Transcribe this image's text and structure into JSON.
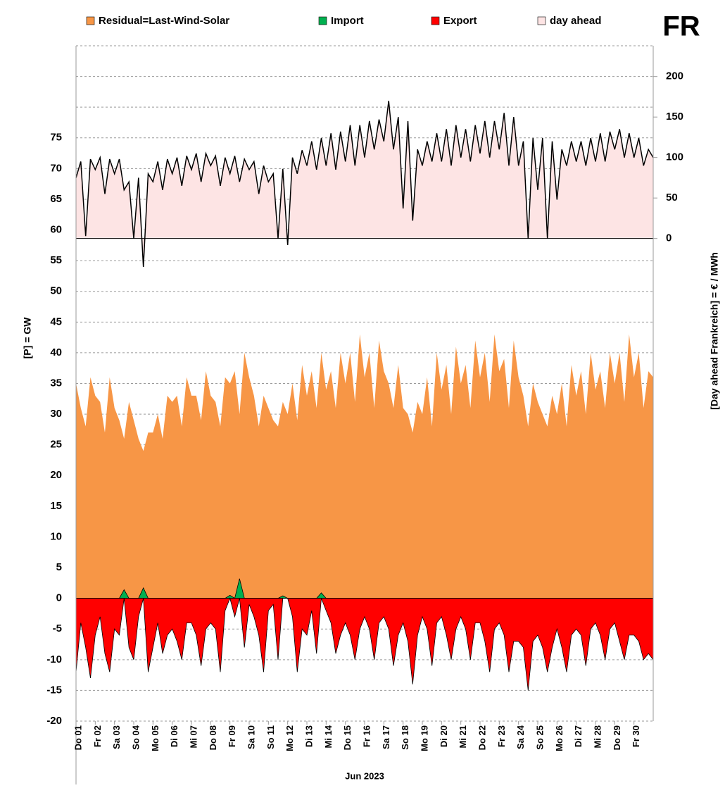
{
  "chart_data": {
    "type": "area",
    "label": "FR",
    "xlabel": "Jun 2023",
    "ylabel": "[P] = GW",
    "y2label": "[Day ahead Frankreich] = € / MWh",
    "xlim": [
      1,
      31
    ],
    "xticks": [
      {
        "value": 1,
        "label": "Do 01"
      },
      {
        "value": 2,
        "label": "Fr 02"
      },
      {
        "value": 3,
        "label": "Sa 03"
      },
      {
        "value": 4,
        "label": "So 04"
      },
      {
        "value": 5,
        "label": "Mo 05"
      },
      {
        "value": 6,
        "label": "Di 06"
      },
      {
        "value": 7,
        "label": "Mi 07"
      },
      {
        "value": 8,
        "label": "Do 08"
      },
      {
        "value": 9,
        "label": "Fr 09"
      },
      {
        "value": 10,
        "label": "Sa 10"
      },
      {
        "value": 11,
        "label": "So 11"
      },
      {
        "value": 12,
        "label": "Mo 12"
      },
      {
        "value": 13,
        "label": "Di 13"
      },
      {
        "value": 14,
        "label": "Mi 14"
      },
      {
        "value": 15,
        "label": "Do 15"
      },
      {
        "value": 16,
        "label": "Fr 16"
      },
      {
        "value": 17,
        "label": "Sa 17"
      },
      {
        "value": 18,
        "label": "So 18"
      },
      {
        "value": 19,
        "label": "Mo 19"
      },
      {
        "value": 20,
        "label": "Di 20"
      },
      {
        "value": 21,
        "label": "Mi 21"
      },
      {
        "value": 22,
        "label": "Do 22"
      },
      {
        "value": 23,
        "label": "Fr 23"
      },
      {
        "value": 24,
        "label": "Sa 24"
      },
      {
        "value": 25,
        "label": "So 25"
      },
      {
        "value": 26,
        "label": "Mo 26"
      },
      {
        "value": 27,
        "label": "Di 27"
      },
      {
        "value": 28,
        "label": "Mi 28"
      },
      {
        "value": 29,
        "label": "Do 29"
      },
      {
        "value": 30,
        "label": "Fr 30"
      }
    ],
    "ylim": [
      -20,
      90
    ],
    "yticks": [
      -20,
      -15,
      -10,
      -5,
      0,
      5,
      10,
      15,
      20,
      25,
      30,
      35,
      40,
      45,
      50,
      55,
      60,
      65,
      70,
      75
    ],
    "y2lim": [
      -596,
      238
    ],
    "y2ticks": [
      0,
      50,
      100,
      150,
      200
    ],
    "grid": true,
    "x": [
      1,
      1.25,
      1.5,
      1.75,
      2,
      2.25,
      2.5,
      2.75,
      3,
      3.25,
      3.5,
      3.75,
      4,
      4.25,
      4.5,
      4.75,
      5,
      5.25,
      5.5,
      5.75,
      6,
      6.25,
      6.5,
      6.75,
      7,
      7.25,
      7.5,
      7.75,
      8,
      8.25,
      8.5,
      8.75,
      9,
      9.25,
      9.5,
      9.75,
      10,
      10.25,
      10.5,
      10.75,
      11,
      11.25,
      11.5,
      11.75,
      12,
      12.25,
      12.5,
      12.75,
      13,
      13.25,
      13.5,
      13.75,
      14,
      14.25,
      14.5,
      14.75,
      15,
      15.25,
      15.5,
      15.75,
      16,
      16.25,
      16.5,
      16.75,
      17,
      17.25,
      17.5,
      17.75,
      18,
      18.25,
      18.5,
      18.75,
      19,
      19.25,
      19.5,
      19.75,
      20,
      20.25,
      20.5,
      20.75,
      21,
      21.25,
      21.5,
      21.75,
      22,
      22.25,
      22.5,
      22.75,
      23,
      23.25,
      23.5,
      23.75,
      24,
      24.25,
      24.5,
      24.75,
      25,
      25.25,
      25.5,
      25.75,
      26,
      26.25,
      26.5,
      26.75,
      27,
      27.25,
      27.5,
      27.75,
      28,
      28.25,
      28.5,
      28.75,
      29,
      29.25,
      29.5,
      29.75,
      30,
      30.25,
      30.5,
      30.75,
      31
    ],
    "series": [
      {
        "name": "Residual=Last-Wind-Solar",
        "color": "#f79646",
        "values": [
          35,
          31,
          28,
          36,
          33,
          32,
          27,
          36,
          31,
          29,
          26,
          32,
          29,
          26,
          24,
          27,
          27,
          30,
          26,
          33,
          32,
          33,
          28,
          36,
          33,
          33,
          29,
          37,
          33,
          32,
          28,
          36,
          35,
          37,
          30,
          40,
          36,
          33,
          28,
          33,
          31,
          29,
          28,
          32,
          30,
          35,
          29,
          38,
          33,
          37,
          31,
          40,
          34,
          37,
          31,
          40,
          35,
          40,
          32,
          43,
          36,
          40,
          31,
          42,
          37,
          35,
          31,
          38,
          31,
          30,
          27,
          32,
          30,
          36,
          28,
          40,
          34,
          38,
          30,
          41,
          35,
          38,
          31,
          42,
          36,
          40,
          32,
          43,
          37,
          39,
          31,
          42,
          36,
          33,
          28,
          35,
          32,
          30,
          28,
          33,
          30,
          35,
          28,
          38,
          33,
          37,
          30,
          40,
          34,
          37,
          31,
          40,
          35,
          40,
          32,
          43,
          36,
          40,
          31,
          37,
          36
        ]
      },
      {
        "name": "Import",
        "color": "#00b050",
        "values": [
          0,
          0,
          0,
          0,
          0,
          0,
          0,
          0,
          0,
          0,
          1.4,
          0,
          0,
          0,
          1.7,
          0,
          0,
          0,
          0,
          0,
          0,
          0,
          0,
          0,
          0,
          0,
          0,
          0,
          0,
          0,
          0,
          0,
          0.5,
          0,
          3.2,
          0,
          0,
          0,
          0,
          0,
          0,
          0,
          0,
          0.4,
          0,
          0,
          0,
          0,
          0,
          0,
          0,
          0.9,
          0,
          0,
          0,
          0,
          0,
          0,
          0,
          0,
          0,
          0,
          0,
          0,
          0,
          0,
          0,
          0,
          0,
          0,
          0,
          0,
          0,
          0,
          0,
          0,
          0,
          0,
          0,
          0,
          0,
          0,
          0,
          0,
          0,
          0,
          0,
          0,
          0,
          0,
          0,
          0,
          0,
          0,
          0,
          0,
          0,
          0,
          0,
          0,
          0,
          0,
          0,
          0,
          0,
          0,
          0,
          0,
          0,
          0,
          0,
          0,
          0,
          0,
          0,
          0,
          0,
          0,
          0,
          0,
          0
        ]
      },
      {
        "name": "Export",
        "color": "#ff0000",
        "values": [
          -12,
          -4,
          -8,
          -13,
          -6,
          -3,
          -9,
          -12,
          -5,
          -6,
          0,
          -8,
          -10,
          -3,
          0,
          -12,
          -8,
          -4,
          -9,
          -6,
          -5,
          -7,
          -10,
          -4,
          -4,
          -6,
          -11,
          -5,
          -4,
          -5,
          -12,
          -2,
          0,
          -3,
          0,
          -8,
          -1,
          -3,
          -6,
          -12,
          -2,
          -1,
          -10,
          0,
          0,
          -3,
          -12,
          -5,
          -6,
          -2,
          -9,
          0,
          -2,
          -4,
          -9,
          -6,
          -4,
          -6,
          -10,
          -5,
          -3,
          -5,
          -10,
          -4,
          -3,
          -5,
          -11,
          -6,
          -4,
          -7,
          -14,
          -6,
          -3,
          -5,
          -11,
          -4,
          -3,
          -6,
          -10,
          -5,
          -3,
          -5,
          -10,
          -4,
          -4,
          -7,
          -12,
          -5,
          -4,
          -6,
          -12,
          -7,
          -7,
          -8,
          -15,
          -7,
          -6,
          -8,
          -12,
          -8,
          -5,
          -8,
          -12,
          -6,
          -5,
          -6,
          -11,
          -5,
          -4,
          -6,
          -10,
          -5,
          -4,
          -7,
          -10,
          -6,
          -6,
          -7,
          -10,
          -9,
          -10
        ]
      },
      {
        "name": "day ahead",
        "color": "#fde4e4",
        "line_color": "#000000",
        "axis": "y2",
        "values": [
          75,
          95,
          3,
          98,
          85,
          100,
          55,
          98,
          80,
          98,
          60,
          70,
          0,
          75,
          -35,
          80,
          70,
          95,
          60,
          98,
          80,
          100,
          65,
          102,
          85,
          105,
          70,
          105,
          90,
          102,
          65,
          100,
          80,
          102,
          70,
          98,
          85,
          95,
          55,
          90,
          70,
          80,
          0,
          86,
          -8,
          100,
          80,
          109,
          90,
          120,
          85,
          124,
          90,
          130,
          85,
          132,
          95,
          140,
          90,
          140,
          100,
          145,
          110,
          147,
          120,
          170,
          110,
          150,
          37,
          145,
          22,
          110,
          90,
          120,
          95,
          130,
          95,
          135,
          90,
          140,
          100,
          135,
          95,
          140,
          105,
          145,
          100,
          145,
          110,
          155,
          90,
          150,
          90,
          120,
          0,
          124,
          60,
          124,
          0,
          120,
          48,
          110,
          90,
          120,
          95,
          120,
          90,
          124,
          95,
          130,
          95,
          132,
          110,
          135,
          100,
          130,
          100,
          124,
          90,
          110,
          100
        ]
      }
    ]
  }
}
